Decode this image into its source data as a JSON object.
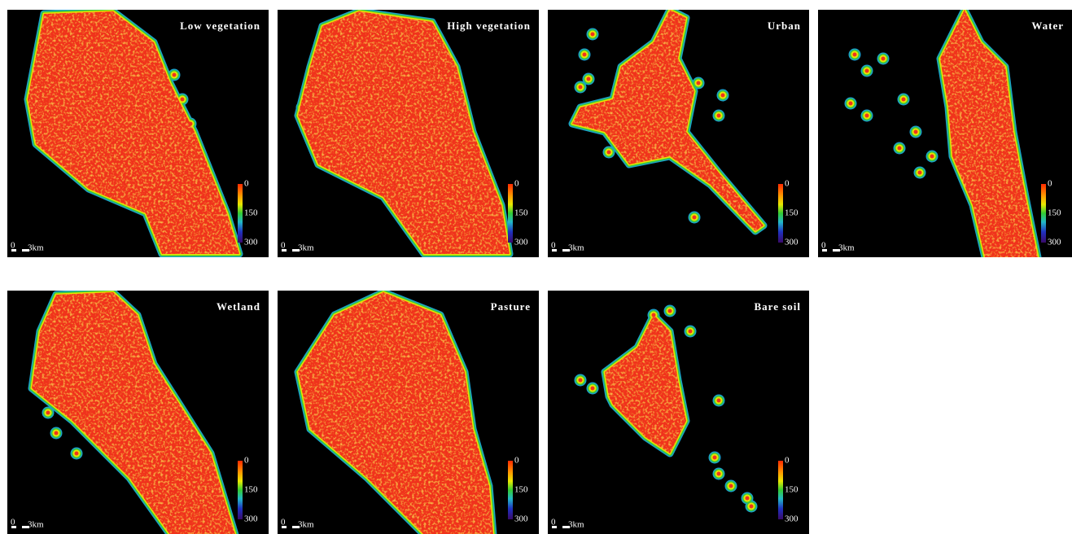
{
  "panels": [
    {
      "title": "Low vegetation",
      "colorbar": {
        "ticks": [
          0,
          150,
          300
        ]
      },
      "scale_bar": {
        "start": "0",
        "end": "3km"
      }
    },
    {
      "title": "High vegetation",
      "colorbar": {
        "ticks": [
          0,
          150,
          300
        ]
      },
      "scale_bar": {
        "start": "0",
        "end": "3km"
      }
    },
    {
      "title": "Urban",
      "colorbar": {
        "ticks": [
          0,
          150,
          300
        ]
      },
      "scale_bar": {
        "start": "0",
        "end": "3km"
      }
    },
    {
      "title": "Water",
      "colorbar": {
        "ticks": [
          0,
          150,
          300
        ]
      },
      "scale_bar": {
        "start": "0",
        "end": "3km"
      }
    },
    {
      "title": "Wetland",
      "colorbar": {
        "ticks": [
          0,
          150,
          300
        ]
      },
      "scale_bar": {
        "start": "0",
        "end": "3km"
      }
    },
    {
      "title": "Pasture",
      "colorbar": {
        "ticks": [
          0,
          150,
          300
        ]
      },
      "scale_bar": {
        "start": "0",
        "end": "3km"
      }
    },
    {
      "title": "Bare soil",
      "colorbar": {
        "ticks": [
          0,
          150,
          300
        ]
      },
      "scale_bar": {
        "start": "0",
        "end": "3km"
      }
    }
  ]
}
